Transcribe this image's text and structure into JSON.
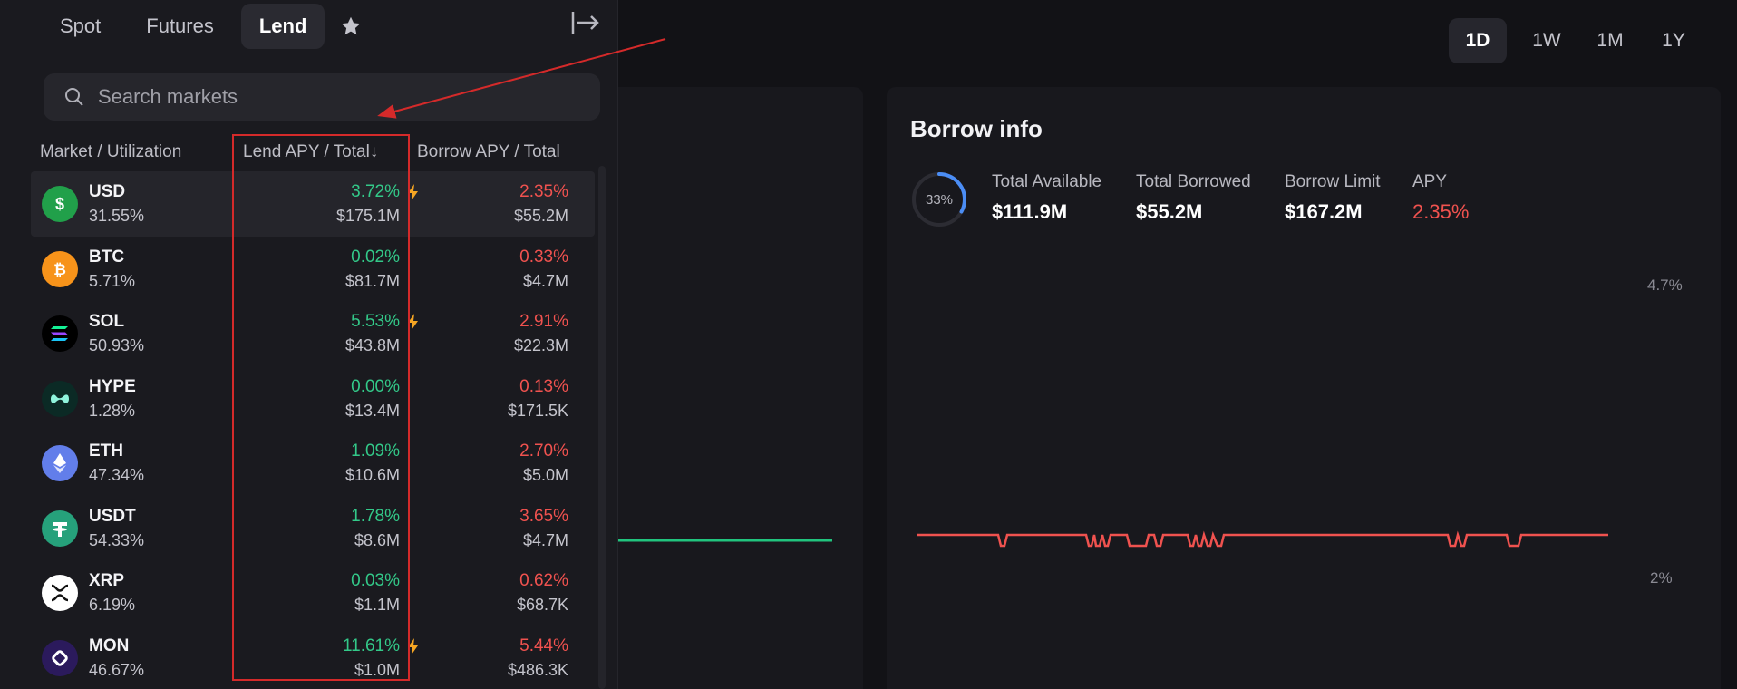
{
  "nav": {
    "tabs": [
      "Spot",
      "Futures",
      "Lend"
    ],
    "active_tab": "Lend",
    "favorites_icon": "star-icon",
    "collapse_icon": "collapse-panel-icon"
  },
  "search": {
    "placeholder": "Search markets"
  },
  "columns": {
    "market": "Market / Utilization",
    "lend": "Lend APY / Total",
    "lend_sort_indicator": "↓",
    "borrow": "Borrow APY / Total"
  },
  "markets": [
    {
      "symbol": "USD",
      "utilization": "31.55%",
      "lend_apy": "3.72%",
      "lend_total": "$175.1M",
      "borrow_apy": "2.35%",
      "borrow_total": "$55.2M",
      "boosted": true,
      "icon": "usd-coin-icon",
      "color": "#21a04a"
    },
    {
      "symbol": "BTC",
      "utilization": "5.71%",
      "lend_apy": "0.02%",
      "lend_total": "$81.7M",
      "borrow_apy": "0.33%",
      "borrow_total": "$4.7M",
      "boosted": false,
      "icon": "btc-coin-icon",
      "color": "#f7931a"
    },
    {
      "symbol": "SOL",
      "utilization": "50.93%",
      "lend_apy": "5.53%",
      "lend_total": "$43.8M",
      "borrow_apy": "2.91%",
      "borrow_total": "$22.3M",
      "boosted": true,
      "icon": "sol-coin-icon",
      "color": "#000000"
    },
    {
      "symbol": "HYPE",
      "utilization": "1.28%",
      "lend_apy": "0.00%",
      "lend_total": "$13.4M",
      "borrow_apy": "0.13%",
      "borrow_total": "$171.5K",
      "boosted": false,
      "icon": "hype-coin-icon",
      "color": "#0b2a25"
    },
    {
      "symbol": "ETH",
      "utilization": "47.34%",
      "lend_apy": "1.09%",
      "lend_total": "$10.6M",
      "borrow_apy": "2.70%",
      "borrow_total": "$5.0M",
      "boosted": false,
      "icon": "eth-coin-icon",
      "color": "#627eea"
    },
    {
      "symbol": "USDT",
      "utilization": "54.33%",
      "lend_apy": "1.78%",
      "lend_total": "$8.6M",
      "borrow_apy": "3.65%",
      "borrow_total": "$4.7M",
      "boosted": false,
      "icon": "usdt-coin-icon",
      "color": "#26a17b"
    },
    {
      "symbol": "XRP",
      "utilization": "6.19%",
      "lend_apy": "0.03%",
      "lend_total": "$1.1M",
      "borrow_apy": "0.62%",
      "borrow_total": "$68.7K",
      "boosted": false,
      "icon": "xrp-coin-icon",
      "color": "#ffffff"
    },
    {
      "symbol": "MON",
      "utilization": "46.67%",
      "lend_apy": "11.61%",
      "lend_total": "$1.0M",
      "borrow_apy": "5.44%",
      "borrow_total": "$486.3K",
      "boosted": true,
      "icon": "mon-coin-icon",
      "color": "#2b1a5c"
    }
  ],
  "range": {
    "options": [
      "1D",
      "1W",
      "1M",
      "1Y"
    ],
    "selected": "1D"
  },
  "borrow_info": {
    "title": "Borrow info",
    "utilization": "33%",
    "utilization_fraction": 0.33,
    "total_available_label": "Total Available",
    "total_available": "$111.9M",
    "total_borrowed_label": "Total Borrowed",
    "total_borrowed": "$55.2M",
    "borrow_limit_label": "Borrow Limit",
    "borrow_limit": "$167.2M",
    "apy_label": "APY",
    "apy": "2.35%"
  },
  "chart": {
    "y_ticks": [
      "4.7%",
      "2%"
    ],
    "borrow_line_color": "#f0524f",
    "lend_line_color": "#21c47e"
  },
  "colors": {
    "positive": "#33c989",
    "negative": "#f0524f",
    "boost": "#f5a623",
    "annotation": "#d42a2a"
  }
}
